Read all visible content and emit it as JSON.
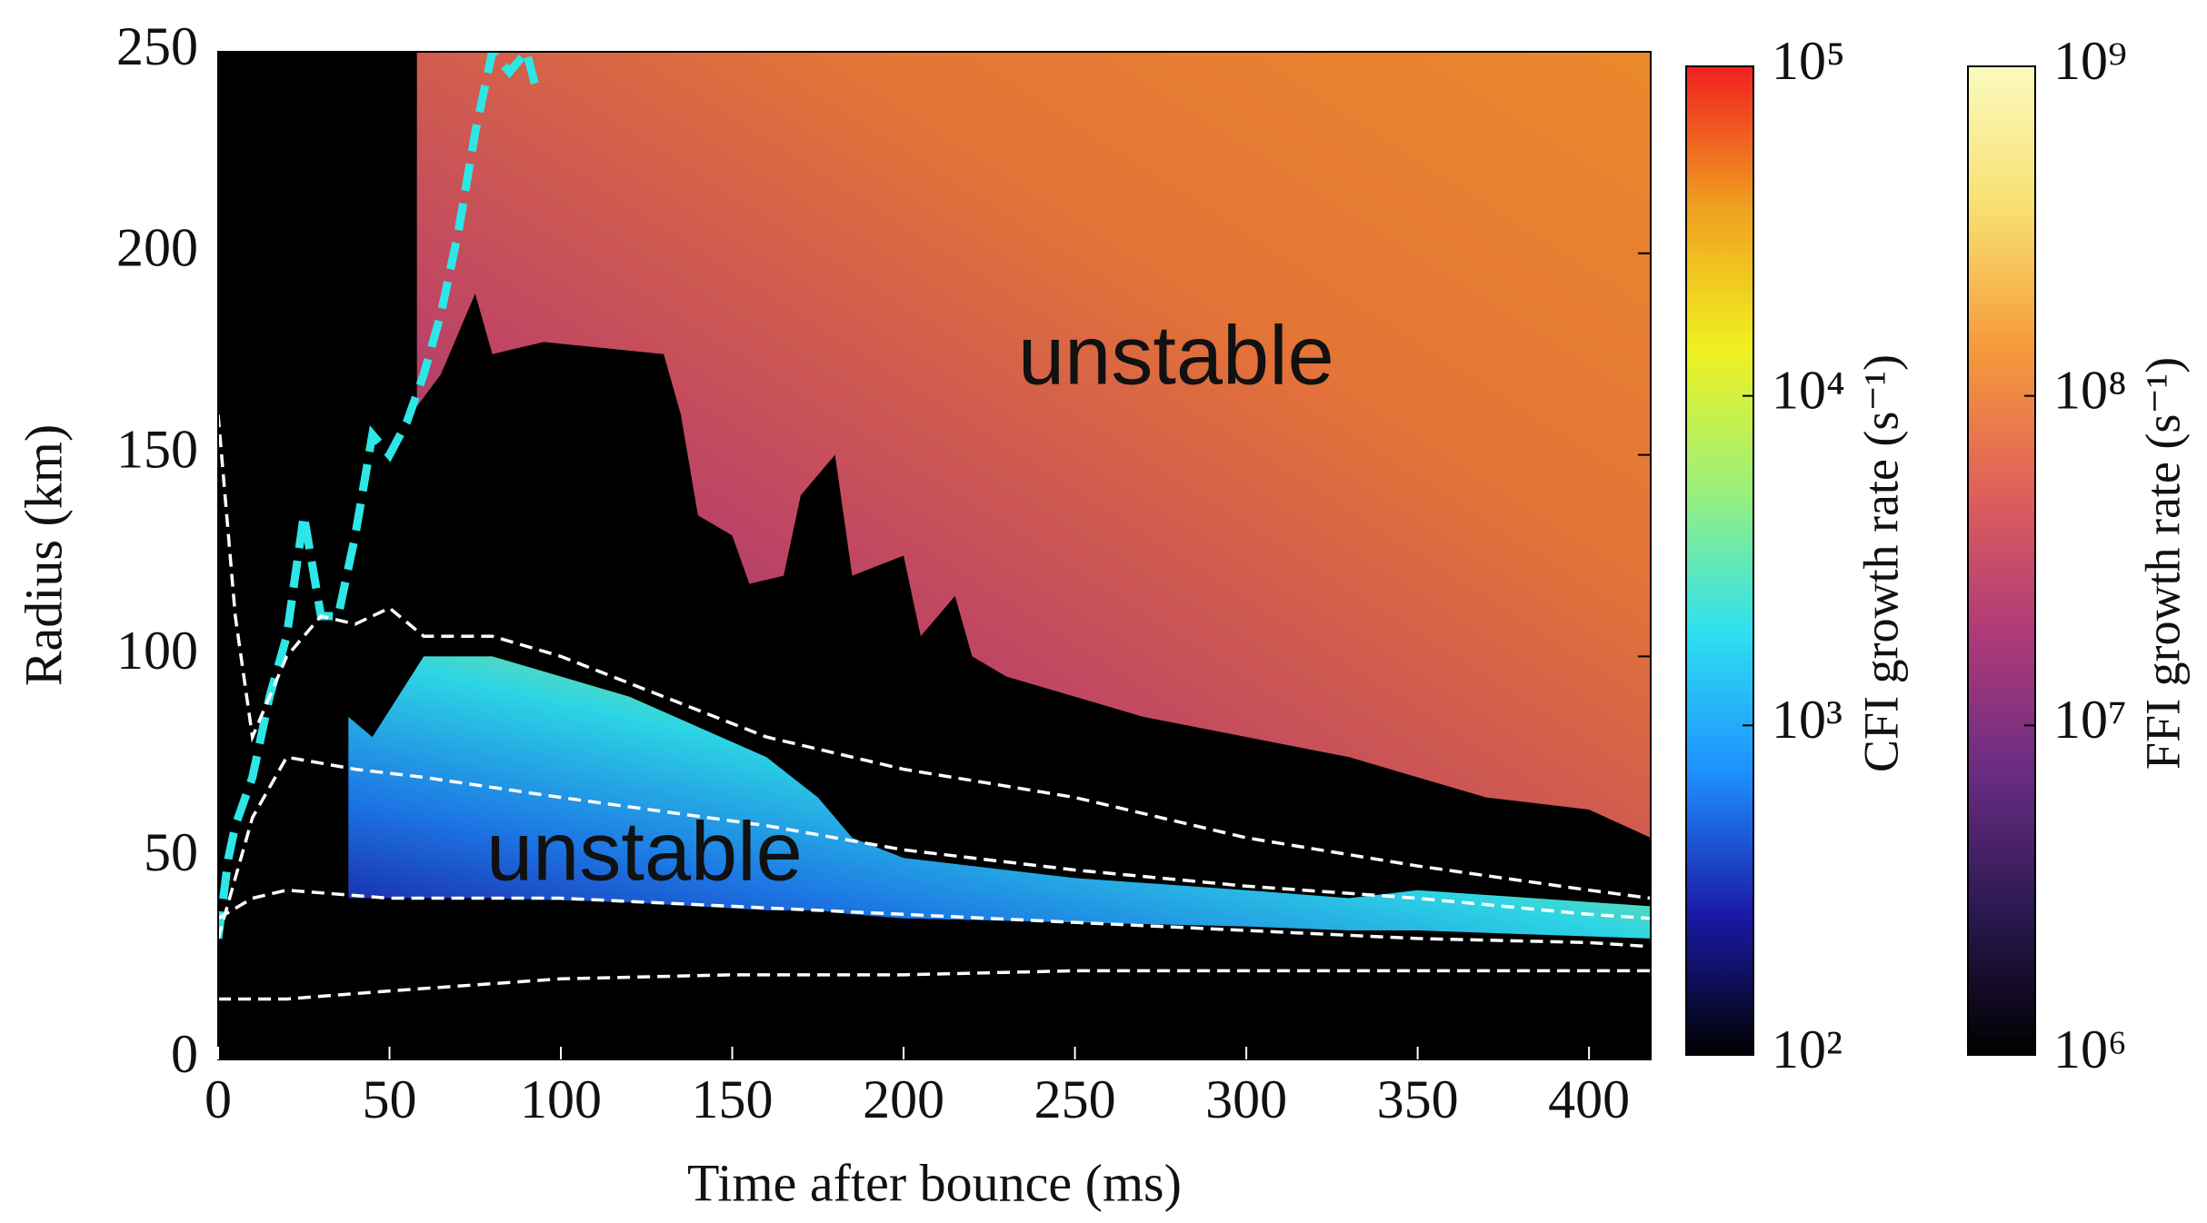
{
  "chart_data": {
    "type": "heatmap",
    "xlabel": "Time after bounce (ms)",
    "ylabel": "Radius (km)",
    "xlim": [
      0,
      418
    ],
    "ylim": [
      0,
      250
    ],
    "xticks": [
      0,
      50,
      100,
      150,
      200,
      250,
      300,
      350,
      400
    ],
    "yticks": [
      0,
      50,
      100,
      150,
      200,
      250
    ],
    "background": "#000000",
    "regions": [
      {
        "name": "FFI",
        "colors": [
          "#6a2c82",
          "#c8486a",
          "#f07a3a",
          "#f7902e"
        ],
        "x": [
          58,
          65,
          75,
          80,
          95,
          130,
          135,
          140,
          150,
          155,
          165,
          170,
          180,
          185,
          200,
          205,
          215,
          220,
          230,
          250,
          270,
          300,
          330,
          350,
          370,
          400,
          418
        ],
        "upper": [
          250,
          250,
          250,
          250,
          250,
          250,
          250,
          250,
          250,
          250,
          250,
          250,
          250,
          250,
          250,
          250,
          250,
          250,
          250,
          250,
          250,
          250,
          250,
          250,
          250,
          250,
          250
        ],
        "lower": [
          162,
          170,
          190,
          175,
          178,
          175,
          160,
          135,
          130,
          118,
          120,
          140,
          150,
          120,
          125,
          105,
          115,
          100,
          95,
          90,
          85,
          80,
          75,
          70,
          65,
          62,
          55
        ]
      },
      {
        "name": "CFI",
        "colors": [
          "#1a1aa8",
          "#1e7cf0",
          "#2fe0f0",
          "#c8f060",
          "#f0a020"
        ],
        "x": [
          38,
          45,
          60,
          80,
          120,
          160,
          175,
          185,
          200,
          250,
          300,
          330,
          350,
          418
        ],
        "upper": [
          85,
          80,
          100,
          100,
          90,
          75,
          65,
          55,
          50,
          45,
          42,
          40,
          42,
          38
        ],
        "lower": [
          40,
          40,
          40,
          40,
          39,
          37,
          37,
          36,
          35,
          34,
          33,
          32,
          32,
          30
        ]
      }
    ],
    "series": [
      {
        "name": "shock",
        "color": "#2ee6e6",
        "dashed": true,
        "x": [
          0,
          3,
          5,
          10,
          15,
          20,
          25,
          28,
          30,
          35,
          40,
          45,
          50,
          55,
          60,
          65,
          70,
          75,
          80,
          85,
          90,
          93
        ],
        "values": [
          30,
          50,
          58,
          70,
          90,
          105,
          135,
          120,
          110,
          110,
          130,
          155,
          150,
          158,
          170,
          185,
          205,
          230,
          250,
          245,
          250,
          240
        ]
      },
      {
        "name": "contour-1",
        "color": "#ffffff",
        "dashed": true,
        "x": [
          0,
          5,
          10,
          15,
          20,
          30,
          40,
          50,
          60,
          80,
          100,
          130,
          160,
          200,
          250,
          300,
          350,
          400,
          418
        ],
        "values": [
          160,
          110,
          80,
          90,
          100,
          110,
          108,
          112,
          105,
          105,
          100,
          90,
          80,
          72,
          65,
          55,
          48,
          42,
          40
        ]
      },
      {
        "name": "contour-2",
        "color": "#ffffff",
        "dashed": true,
        "x": [
          0,
          10,
          20,
          40,
          60,
          100,
          160,
          200,
          250,
          300,
          350,
          400,
          418
        ],
        "values": [
          30,
          60,
          75,
          72,
          70,
          65,
          58,
          52,
          47,
          43,
          40,
          36,
          35
        ]
      },
      {
        "name": "contour-3",
        "color": "#ffffff",
        "dashed": true,
        "x": [
          0,
          10,
          20,
          50,
          100,
          150,
          200,
          250,
          300,
          350,
          400,
          418
        ],
        "values": [
          35,
          40,
          42,
          40,
          40,
          38,
          36,
          34,
          32,
          30,
          29,
          28
        ]
      },
      {
        "name": "contour-4",
        "color": "#ffffff",
        "dashed": true,
        "x": [
          0,
          20,
          50,
          100,
          150,
          200,
          250,
          300,
          350,
          400,
          418
        ],
        "values": [
          15,
          15,
          17,
          20,
          21,
          21,
          22,
          22,
          22,
          22,
          22
        ]
      }
    ],
    "annotations": [
      {
        "text": "unstable",
        "color": "#7ee04a"
      },
      {
        "text": "unstable",
        "color": "#e8281e"
      }
    ],
    "colorbars": [
      {
        "label": "CFI growth rate (s⁻¹)",
        "log": true,
        "lim": [
          100,
          100000
        ],
        "colors": [
          "#000000",
          "#1a1aa8",
          "#1e90ff",
          "#2fe0f0",
          "#9af07a",
          "#f0f020",
          "#f0a020",
          "#f02020"
        ],
        "ticks": [
          {
            "value": 100,
            "label": "10²"
          },
          {
            "value": 1000,
            "label": "10³"
          },
          {
            "value": 10000,
            "label": "10⁴"
          },
          {
            "value": 100000,
            "label": "10⁵"
          }
        ]
      },
      {
        "label": "FFI growth rate (s⁻¹)",
        "log": true,
        "lim": [
          1000000,
          1000000000
        ],
        "colors": [
          "#000000",
          "#2a1850",
          "#6a2c82",
          "#b03a78",
          "#e0605a",
          "#f59a3a",
          "#f8e070",
          "#fafac0"
        ],
        "ticks": [
          {
            "value": 1000000,
            "label": "10⁶"
          },
          {
            "value": 10000000,
            "label": "10⁷"
          },
          {
            "value": 100000000,
            "label": "10⁸"
          },
          {
            "value": 1000000000,
            "label": "10⁹"
          }
        ]
      }
    ]
  }
}
